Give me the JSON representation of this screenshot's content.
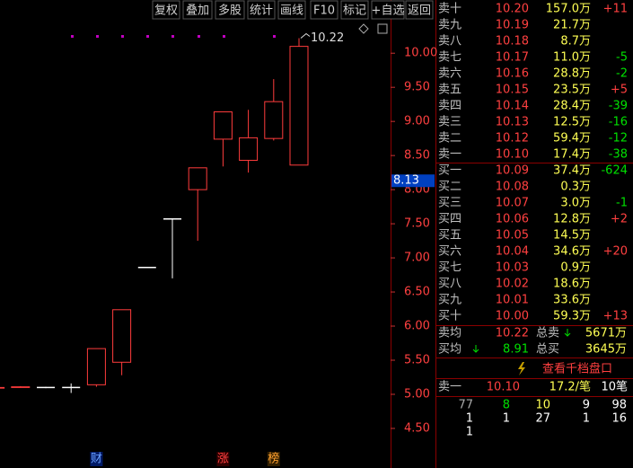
{
  "toolbar": [
    "复权",
    "叠加",
    "多股",
    "统计",
    "画线",
    "F10",
    "标记",
    "+自选",
    "返回"
  ],
  "chart_data": {
    "type": "candlestick",
    "categories": [
      null,
      null,
      null,
      null,
      null,
      null,
      null,
      null,
      null,
      null,
      null,
      null,
      null
    ],
    "open": [
      5.09,
      5.1,
      5.1,
      5.1,
      5.14,
      5.47,
      6.86,
      7.57,
      8.0,
      8.74,
      8.43,
      8.75,
      8.36
    ],
    "close": [
      5.1,
      5.11,
      5.1,
      5.1,
      5.67,
      6.24,
      6.86,
      7.57,
      8.32,
      9.14,
      8.76,
      9.29,
      10.1
    ],
    "high": [
      5.1,
      5.12,
      5.11,
      5.16,
      5.67,
      6.24,
      6.86,
      7.57,
      8.32,
      9.14,
      9.17,
      9.62,
      10.22
    ],
    "low": [
      5.09,
      5.1,
      5.09,
      5.02,
      5.11,
      5.28,
      6.86,
      6.7,
      7.25,
      8.34,
      8.25,
      8.72,
      8.36
    ],
    "up_color": "#ff3c3c",
    "flat_color": "#ffffff",
    "down_color": "#54ffff",
    "ylim": [
      3.92,
      10.49
    ],
    "yticks": [
      {
        "value": 4.5,
        "label": "4.50"
      },
      {
        "value": 5,
        "label": "5.00"
      },
      {
        "value": 5.5,
        "label": "5.50"
      },
      {
        "value": 6,
        "label": "6.00"
      },
      {
        "value": 6.5,
        "label": "6.50"
      },
      {
        "value": 7,
        "label": "7.00"
      },
      {
        "value": 7.5,
        "label": "7.50"
      },
      {
        "value": 8,
        "label": "8.00"
      },
      {
        "value": 8.5,
        "label": "8.50"
      },
      {
        "value": 9,
        "label": "9.00"
      },
      {
        "value": 9.5,
        "label": "9.50"
      },
      {
        "value": 10,
        "label": "10.00"
      }
    ],
    "high_annotation": "10.22",
    "cursor_price": 8.13,
    "markers": [
      "财",
      "涨",
      "榜"
    ]
  },
  "order_book": {
    "asks": [
      [
        "卖十",
        "10.20",
        "157.0万",
        "+11"
      ],
      [
        "卖九",
        "10.19",
        "21.7万"
      ],
      [
        "卖八",
        "10.18",
        "8.7万"
      ],
      [
        "卖七",
        "10.17",
        "11.0万",
        "-5"
      ],
      [
        "卖六",
        "10.16",
        "28.8万",
        "-2"
      ],
      [
        "卖五",
        "10.15",
        "23.5万",
        "+5"
      ],
      [
        "卖四",
        "10.14",
        "28.4万",
        "-39"
      ],
      [
        "卖三",
        "10.13",
        "12.5万",
        "-16"
      ],
      [
        "卖二",
        "10.12",
        "59.4万",
        "-12"
      ],
      [
        "卖一",
        "10.10",
        "17.4万",
        "-38"
      ]
    ],
    "bids": [
      [
        "买一",
        "10.09",
        "37.4万",
        "-624"
      ],
      [
        "买二",
        "10.08",
        "0.3万"
      ],
      [
        "买三",
        "10.07",
        "3.0万",
        "-1"
      ],
      [
        "买四",
        "10.06",
        "12.8万",
        "+2"
      ],
      [
        "买五",
        "10.05",
        "14.5万"
      ],
      [
        "买六",
        "10.04",
        "34.6万",
        "+20"
      ],
      [
        "买七",
        "10.03",
        "0.9万"
      ],
      [
        "买八",
        "10.02",
        "18.6万"
      ],
      [
        "买九",
        "10.01",
        "33.6万"
      ],
      [
        "买十",
        "10.00",
        "59.3万",
        "+13"
      ]
    ],
    "summary": [
      [
        "卖均",
        "10.22",
        "总卖",
        "5671万"
      ],
      [
        "买均",
        "8.91",
        "总买",
        "3645万"
      ]
    ],
    "button": "查看千档盘口",
    "ticket": [
      "卖一",
      "10.10",
      "17.2/笔",
      "10笔"
    ],
    "queue": [
      [
        "77",
        "8",
        "10",
        "9",
        "98"
      ],
      [
        "1",
        "1",
        "27",
        "1",
        "16"
      ],
      [
        "1"
      ]
    ]
  }
}
